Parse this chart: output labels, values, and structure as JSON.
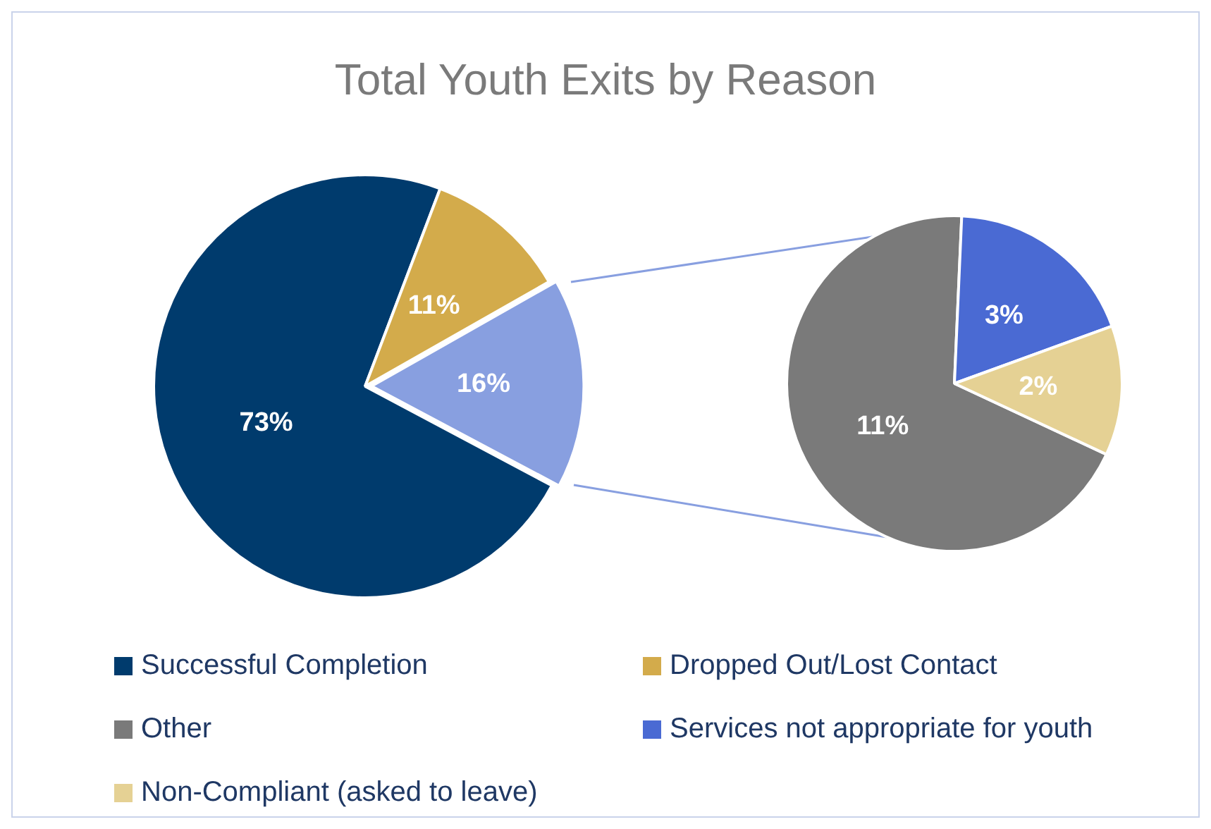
{
  "chart_data": [
    {
      "type": "pie",
      "title": "Total Youth Exits by Reason",
      "categories": [
        "Successful Completion",
        "Dropped Out/Lost Contact",
        null
      ],
      "values": [
        73,
        11,
        16
      ],
      "colors": [
        "#003b6d",
        "#d3ab4b",
        "#889fe0"
      ],
      "value_labels": [
        "73%",
        "11%",
        "16%"
      ],
      "legend": "bottom"
    },
    {
      "type": "pie",
      "categories": [
        "Other",
        "Services not appropriate for youth",
        "Non-Compliant (asked to leave)"
      ],
      "values": [
        11,
        3,
        2
      ],
      "colors": [
        "#7a7a7a",
        "#4a6ad3",
        "#e5d194"
      ],
      "value_labels": [
        "11%",
        "3%",
        "2%"
      ],
      "legend": "bottom"
    }
  ]
}
